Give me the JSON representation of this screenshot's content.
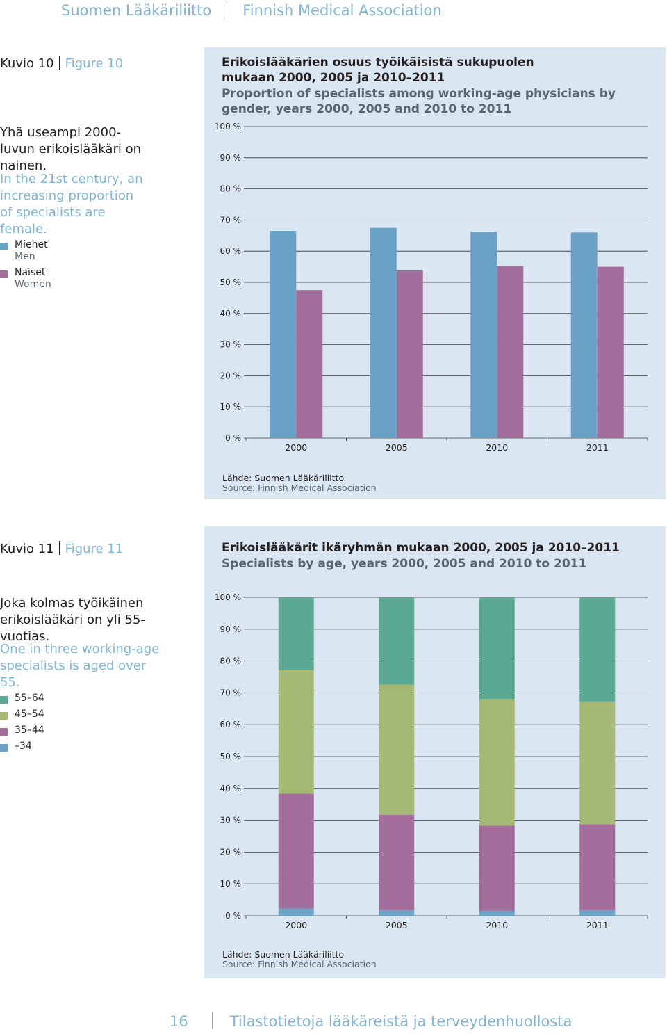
{
  "header": {
    "org_fi": "Suomen Lääkäriliitto",
    "org_en": "Finnish Medical Association"
  },
  "figure10": {
    "label_fi": "Kuvio 10",
    "label_en": "Figure 10",
    "text_fi": "Yhä useampi 2000-luvun erikoislääkäri on nainen.",
    "text_en": "In the 21st century, an increasing proportion of specialists are female.",
    "title_fi": "Erikoislääkärien osuus työikäisistä sukupuolen mukaan 2000, 2005 ja 2010–2011",
    "title_en": "Proportion of specialists among working-age physicians by gender, years 2000, 2005 and 2010 to 2011",
    "legend": [
      {
        "fi": "Miehet",
        "en": "Men",
        "color": "#6aa3c5"
      },
      {
        "fi": "Naiset",
        "en": "Women",
        "color": "#a46e9c"
      }
    ],
    "source_label_fi": "Lähde:",
    "source_fi": "Suomen Lääkäriliitto",
    "source_label_en": "Source:",
    "source_en": "Finnish Medical Association"
  },
  "figure11": {
    "label_fi": "Kuvio 11",
    "label_en": "Figure 11",
    "text_fi": "Joka kolmas työikäinen erikoislääkäri on yli 55-vuotias.",
    "text_en": "One in three working-age specialists is aged over 55.",
    "title_fi": "Erikoislääkärit ikäryhmän mukaan 2000, 2005 ja 2010–2011",
    "title_en": "Specialists by age, years 2000, 2005 and 2010 to 2011",
    "legend": [
      {
        "fi": "55–64",
        "color": "#5ba893"
      },
      {
        "fi": "45–54",
        "color": "#a5b974"
      },
      {
        "fi": "35–44",
        "color": "#a46e9c"
      },
      {
        "fi": "–34",
        "color": "#6aa3c5"
      }
    ],
    "source_label_fi": "Lähde:",
    "source_fi": "Suomen Lääkäriliitto",
    "source_label_en": "Source:",
    "source_en": "Finnish Medical Association"
  },
  "chart_data": [
    {
      "type": "bar",
      "title": "Proportion of specialists among working-age physicians by gender",
      "categories": [
        "2000",
        "2005",
        "2010",
        "2011"
      ],
      "series": [
        {
          "name": "Miehet / Men",
          "color": "#6aa3c5",
          "values": [
            66.5,
            67.5,
            66.3,
            66.0
          ]
        },
        {
          "name": "Naiset / Women",
          "color": "#a46e9c",
          "values": [
            47.5,
            53.8,
            55.2,
            55.0
          ]
        }
      ],
      "yticks": [
        "0 %",
        "10 %",
        "20 %",
        "30 %",
        "40 %",
        "50 %",
        "60 %",
        "70 %",
        "80 %",
        "90 %",
        "100 %"
      ],
      "ylim": [
        0,
        100
      ],
      "xlabel": "",
      "ylabel": ""
    },
    {
      "type": "bar",
      "stacked": true,
      "title": "Specialists by age",
      "categories": [
        "2000",
        "2005",
        "2010",
        "2011"
      ],
      "series": [
        {
          "name": "–34",
          "color": "#6aa3c5",
          "values": [
            2.3,
            1.8,
            1.5,
            1.8
          ]
        },
        {
          "name": "35–44",
          "color": "#a46e9c",
          "values": [
            36.0,
            29.9,
            26.8,
            26.9
          ]
        },
        {
          "name": "45–54",
          "color": "#a5b974",
          "values": [
            38.8,
            40.9,
            39.8,
            38.6
          ]
        },
        {
          "name": "55–64",
          "color": "#5ba893",
          "values": [
            22.9,
            27.4,
            31.9,
            32.7
          ]
        }
      ],
      "yticks": [
        "0 %",
        "10 %",
        "20 %",
        "30 %",
        "40 %",
        "50 %",
        "60 %",
        "70 %",
        "80 %",
        "90 %",
        "100 %"
      ],
      "ylim": [
        0,
        100
      ],
      "xlabel": "",
      "ylabel": ""
    }
  ]
}
